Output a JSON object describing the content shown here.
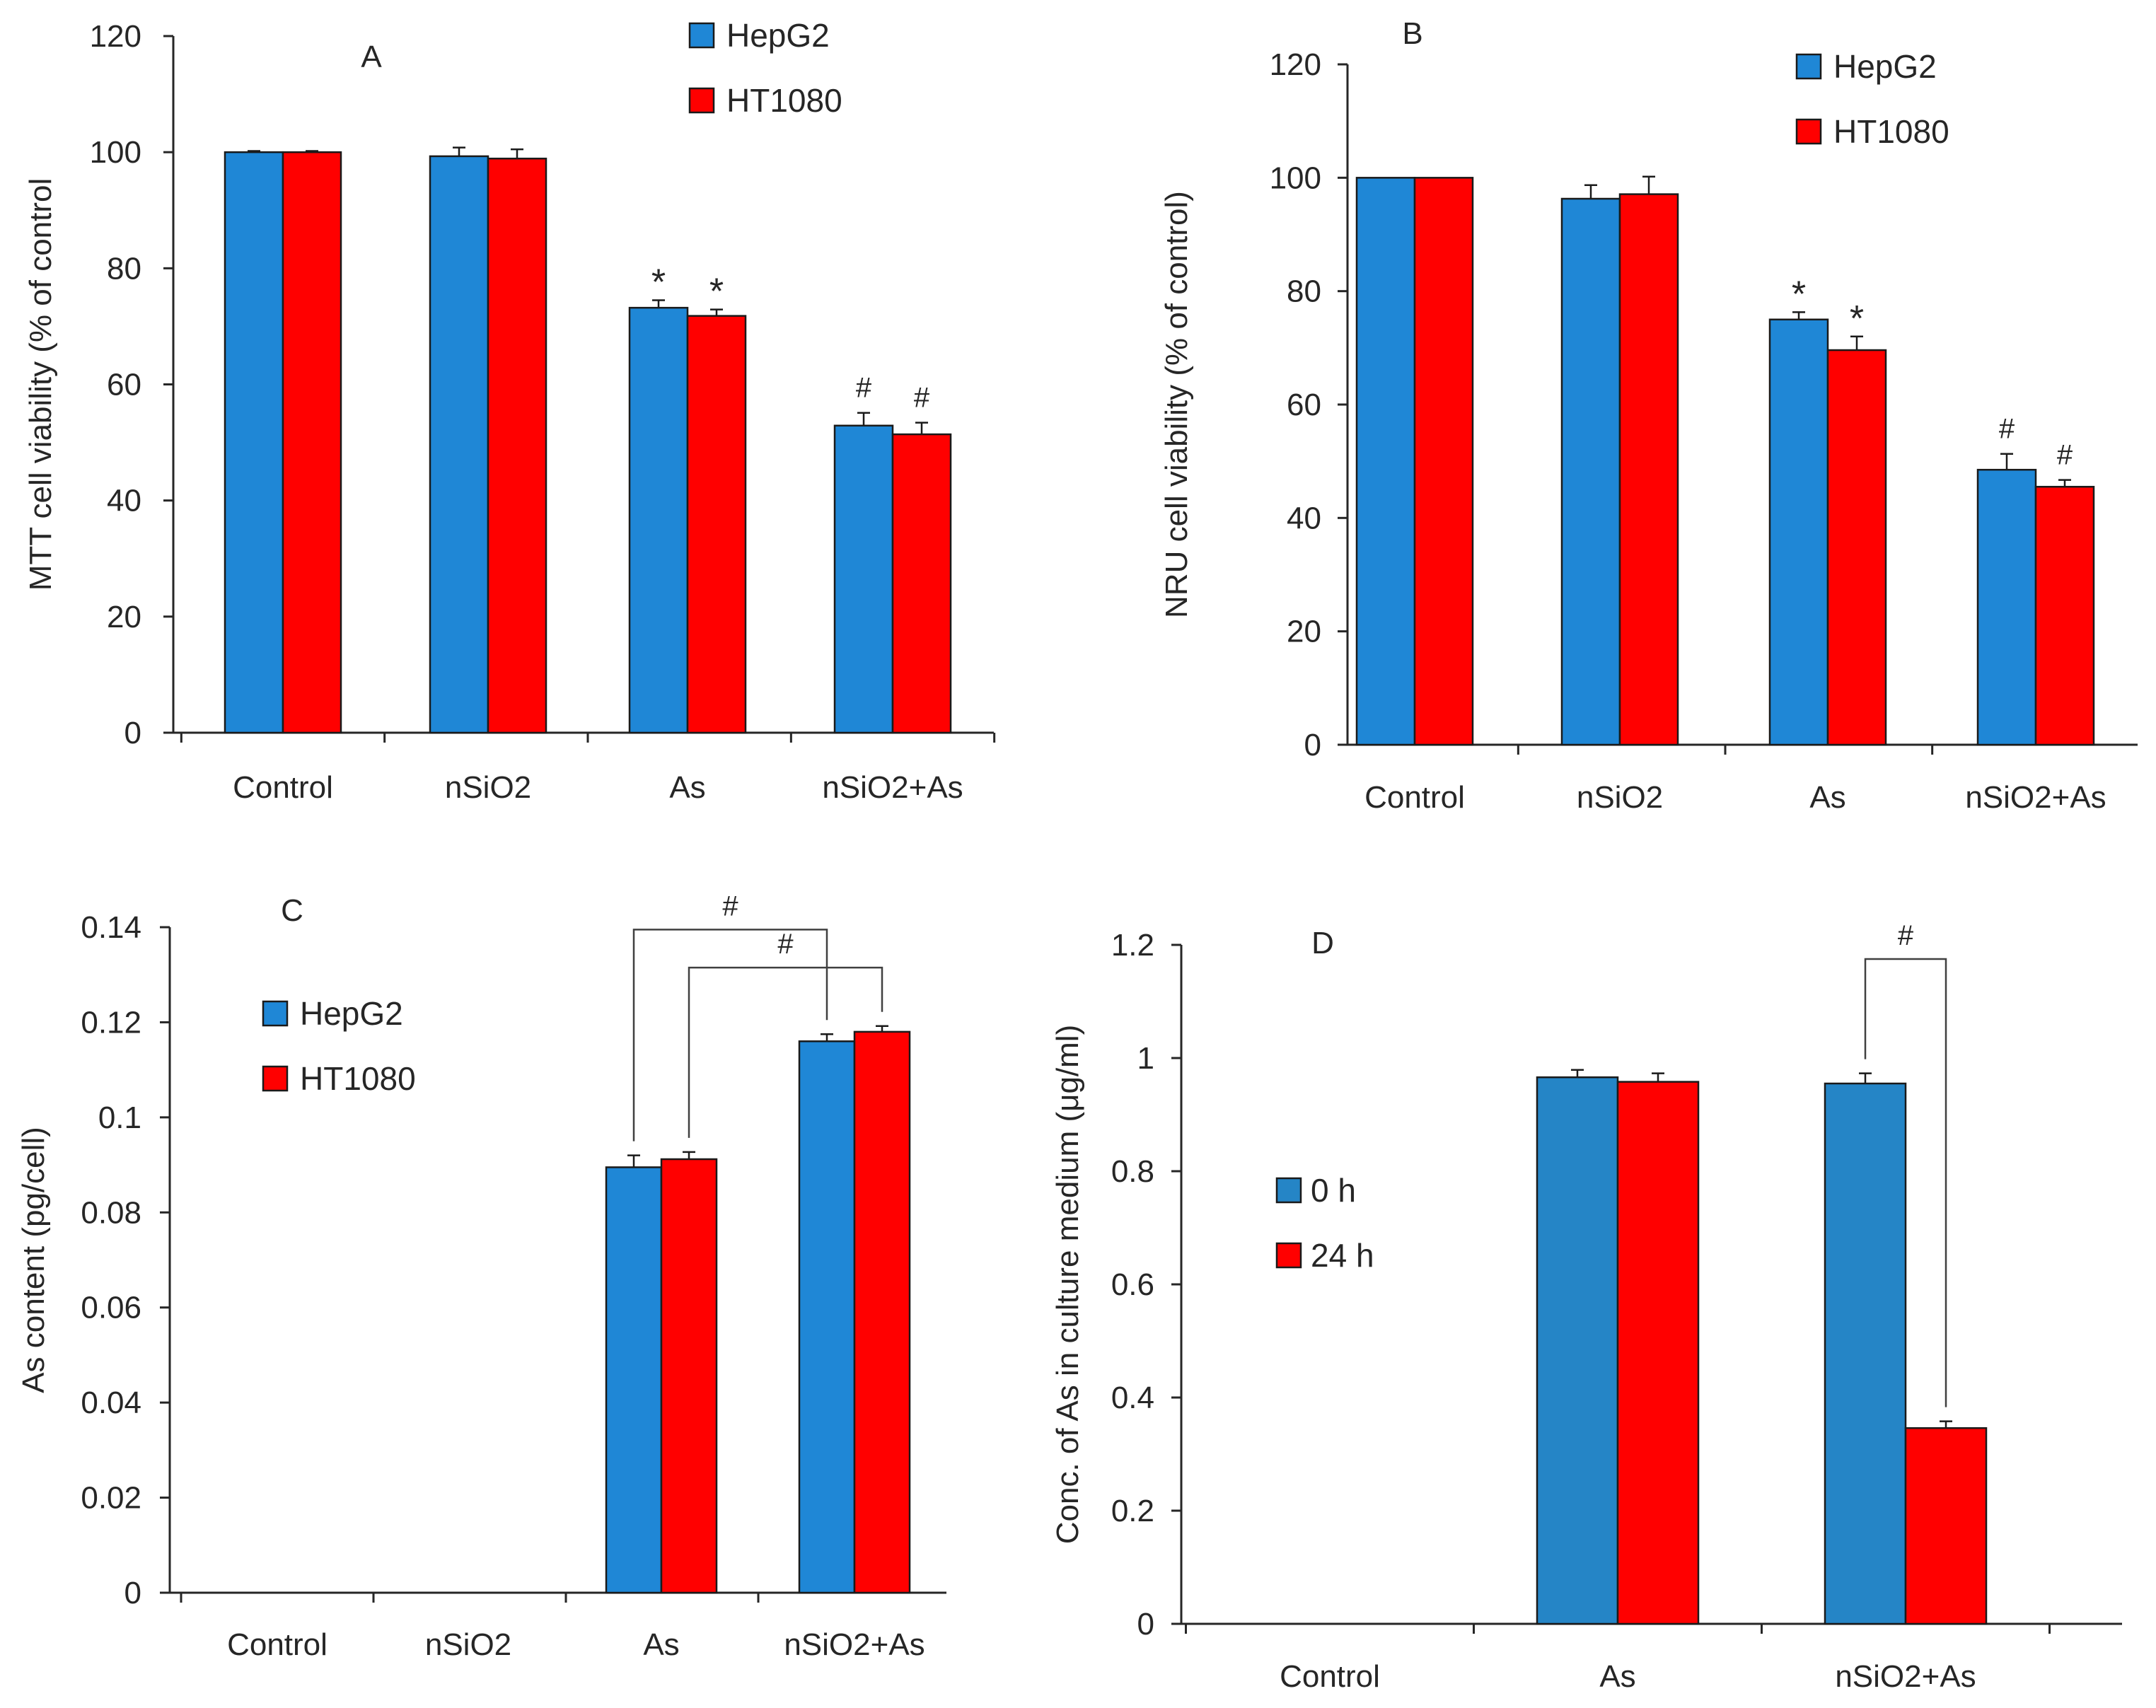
{
  "figure": {
    "panel_count": 4
  },
  "colors": {
    "hepg2": "#1f87d6",
    "ht1080": "#ff0000",
    "h0": "#2585c6",
    "h24": "#ff0000"
  },
  "chart_data": [
    {
      "id": "A",
      "type": "bar",
      "label": "A",
      "ylabel": "MTT cell viability (% of control",
      "ylim": [
        0,
        120
      ],
      "yticks": [
        0,
        20,
        40,
        60,
        80,
        100,
        120
      ],
      "ytick_labels": [
        "0",
        "20",
        "40",
        "60",
        "80",
        "100",
        "120"
      ],
      "categories": [
        "Control",
        "nSiO2",
        "As",
        "nSiO2+As"
      ],
      "series": [
        {
          "name": "HepG2",
          "color": "#1f87d6",
          "values": [
            100,
            99.3,
            73.2,
            52.9
          ],
          "errors": [
            0.2,
            1.5,
            1.3,
            2.2
          ]
        },
        {
          "name": "HT1080",
          "color": "#ff0000",
          "values": [
            100,
            98.9,
            71.8,
            51.4
          ],
          "errors": [
            0.2,
            1.6,
            1.1,
            2.0
          ]
        }
      ],
      "annotations": [
        {
          "category": 2,
          "series": 0,
          "text": "*"
        },
        {
          "category": 2,
          "series": 1,
          "text": "*"
        },
        {
          "category": 3,
          "series": 0,
          "text": "#"
        },
        {
          "category": 3,
          "series": 1,
          "text": "#"
        }
      ],
      "legend": {
        "position": "top-right",
        "items": [
          "HepG2",
          "HT1080"
        ]
      }
    },
    {
      "id": "B",
      "type": "bar",
      "label": "B",
      "ylabel": "NRU cell viability (% of control)",
      "ylim": [
        0,
        120
      ],
      "yticks": [
        0,
        20,
        40,
        60,
        80,
        100,
        120
      ],
      "ytick_labels": [
        "0",
        "20",
        "40",
        "60",
        "80",
        "100",
        "120"
      ],
      "categories": [
        "Control",
        "nSiO2",
        "As",
        "nSiO2+As"
      ],
      "series": [
        {
          "name": "HepG2",
          "color": "#1f87d6",
          "values": [
            100,
            96.3,
            75.0,
            48.5
          ],
          "errors": [
            0,
            2.4,
            1.3,
            2.8
          ]
        },
        {
          "name": "HT1080",
          "color": "#ff0000",
          "values": [
            100,
            97.1,
            69.6,
            45.5
          ],
          "errors": [
            0,
            3.1,
            2.4,
            1.2
          ]
        }
      ],
      "annotations": [
        {
          "category": 2,
          "series": 0,
          "text": "*"
        },
        {
          "category": 2,
          "series": 1,
          "text": "*"
        },
        {
          "category": 3,
          "series": 0,
          "text": "#"
        },
        {
          "category": 3,
          "series": 1,
          "text": "#"
        }
      ],
      "legend": {
        "position": "top-right",
        "items": [
          "HepG2",
          "HT1080"
        ]
      }
    },
    {
      "id": "C",
      "type": "bar",
      "label": "C",
      "ylabel": "As content (pg/cell)",
      "ylim": [
        0,
        0.14
      ],
      "yticks": [
        0,
        0.02,
        0.04,
        0.06,
        0.08,
        0.1,
        0.12,
        0.14
      ],
      "ytick_labels": [
        "0",
        "0.02",
        "0.04",
        "0.06",
        "0.08",
        "0.1",
        "0.12",
        "0.14"
      ],
      "categories": [
        "Control",
        "nSiO2",
        "As",
        "nSiO2+As"
      ],
      "series": [
        {
          "name": "HepG2",
          "color": "#1f87d6",
          "values": [
            0,
            0,
            0.0895,
            0.116
          ],
          "errors": [
            0,
            0,
            0.0025,
            0.0015
          ]
        },
        {
          "name": "HT1080",
          "color": "#ff0000",
          "values": [
            0,
            0,
            0.0912,
            0.118
          ],
          "errors": [
            0,
            0,
            0.0015,
            0.0012
          ]
        }
      ],
      "brackets": [
        {
          "from": {
            "category": 2,
            "series": 0
          },
          "to": {
            "category": 3,
            "series": 0
          },
          "y": 0.1395,
          "text": "#"
        },
        {
          "from": {
            "category": 2,
            "series": 1
          },
          "to": {
            "category": 3,
            "series": 1
          },
          "y": 0.1315,
          "text": "#"
        }
      ],
      "legend": {
        "position": "upper-left",
        "items": [
          "HepG2",
          "HT1080"
        ]
      }
    },
    {
      "id": "D",
      "type": "bar",
      "label": "D",
      "ylabel": "Conc. of As in culture medium (μg/ml)",
      "ylim": [
        0,
        1.2
      ],
      "yticks": [
        0,
        0.2,
        0.4,
        0.6,
        0.8,
        1.0,
        1.2
      ],
      "ytick_labels": [
        "0",
        "0.2",
        "0.4",
        "0.6",
        "0.8",
        "1",
        "1.2"
      ],
      "categories": [
        "Control",
        "As",
        "nSiO2+As"
      ],
      "series": [
        {
          "name": "0 h",
          "color": "#2585c6",
          "values": [
            0,
            0.966,
            0.955
          ],
          "errors": [
            0,
            0.013,
            0.018
          ]
        },
        {
          "name": "24 h",
          "color": "#ff0000",
          "values": [
            0,
            0.958,
            0.346
          ],
          "errors": [
            0,
            0.015,
            0.012
          ]
        }
      ],
      "brackets": [
        {
          "from": {
            "category": 2,
            "series": 0
          },
          "to": {
            "category": 2,
            "series": 1
          },
          "y": 1.175,
          "text": "#"
        }
      ],
      "legend": {
        "position": "middle-left",
        "items": [
          "0 h",
          "24 h"
        ]
      }
    }
  ]
}
